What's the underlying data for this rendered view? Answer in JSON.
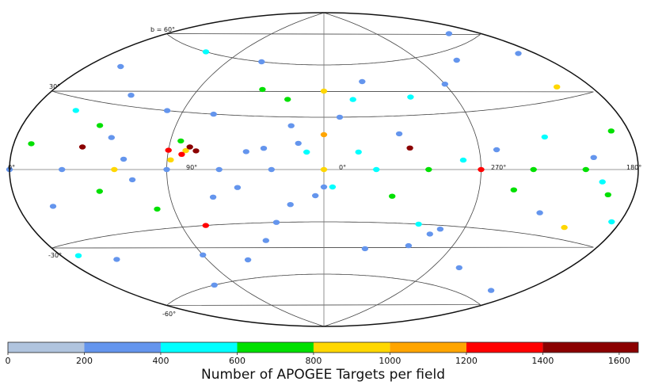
{
  "chart_data": {
    "type": "scatter",
    "projection": "aitoff",
    "title": "",
    "graticule_labels": {
      "b_plus_60": "b = 60°",
      "b_plus_30": "30°",
      "b_zero_left": "0°",
      "b_minus_30": "-30°",
      "b_minus_60": "-60°",
      "l_180": "180°",
      "l_90": "90°",
      "l_0": "0°",
      "l_270": "270°"
    },
    "colorbar": {
      "label": "Number of APOGEE Targets per field",
      "ticks": [
        "0",
        "200",
        "400",
        "600",
        "800",
        "1000",
        "1200",
        "1400",
        "1600"
      ],
      "bins": [
        {
          "min": 0,
          "max": 200,
          "color": "#b0c4de"
        },
        {
          "min": 200,
          "max": 400,
          "color": "#6495ed"
        },
        {
          "min": 400,
          "max": 600,
          "color": "#00ffff"
        },
        {
          "min": 600,
          "max": 800,
          "color": "#00e000"
        },
        {
          "min": 800,
          "max": 1000,
          "color": "#ffd700"
        },
        {
          "min": 1000,
          "max": 1200,
          "color": "#ffa500"
        },
        {
          "min": 1200,
          "max": 1400,
          "color": "#ff0000"
        },
        {
          "min": 1400,
          "max": 1650,
          "color": "#8b0000"
        }
      ]
    },
    "points": [
      {
        "l": 90,
        "b": 0,
        "n": 350
      },
      {
        "l": 60,
        "b": 0,
        "n": 350
      },
      {
        "l": 30,
        "b": 0,
        "n": 350
      },
      {
        "l": 0,
        "b": 0,
        "n": 900
      },
      {
        "l": 330,
        "b": 0,
        "n": 450
      },
      {
        "l": 300,
        "b": 0,
        "n": 700
      },
      {
        "l": 270,
        "b": 0,
        "n": 1300
      },
      {
        "l": 240,
        "b": 0,
        "n": 700
      },
      {
        "l": 210,
        "b": 0,
        "n": 700
      },
      {
        "l": 150,
        "b": 0,
        "n": 350
      },
      {
        "l": 120,
        "b": 0,
        "n": 850
      },
      {
        "l": 180,
        "b": 0,
        "n": 350
      },
      {
        "l": 90,
        "b": 10,
        "n": 1200
      },
      {
        "l": 80,
        "b": 10,
        "n": 900
      },
      {
        "l": 78,
        "b": 12,
        "n": 1400
      },
      {
        "l": 82,
        "b": 8,
        "n": 1300
      },
      {
        "l": 74,
        "b": 10,
        "n": 1500
      },
      {
        "l": 84,
        "b": 15,
        "n": 700
      },
      {
        "l": 88,
        "b": 5,
        "n": 850
      },
      {
        "l": 140,
        "b": 10,
        "n": 1500
      },
      {
        "l": 310,
        "b": 12,
        "n": 1500
      },
      {
        "l": 0,
        "b": 20,
        "n": 1100
      },
      {
        "l": 0,
        "b": 45,
        "n": 900
      },
      {
        "l": 200,
        "b": 35,
        "n": 900
      },
      {
        "l": 210,
        "b": -25,
        "n": 900
      },
      {
        "l": 75,
        "b": -30,
        "n": 1300
      },
      {
        "l": 10,
        "b": 10,
        "n": 400
      },
      {
        "l": 15,
        "b": 15,
        "n": 350
      },
      {
        "l": 20,
        "b": 25,
        "n": 350
      },
      {
        "l": 25,
        "b": 40,
        "n": 700
      },
      {
        "l": -10,
        "b": 30,
        "n": 350
      },
      {
        "l": -20,
        "b": 40,
        "n": 450
      },
      {
        "l": 340,
        "b": 10,
        "n": 450
      },
      {
        "l": 0,
        "b": -10,
        "n": 350
      },
      {
        "l": 5,
        "b": -15,
        "n": 350
      },
      {
        "l": 355,
        "b": -10,
        "n": 450
      },
      {
        "l": 290,
        "b": -35,
        "n": 350
      },
      {
        "l": 285,
        "b": -32,
        "n": 350
      },
      {
        "l": 300,
        "b": -30,
        "n": 450
      },
      {
        "l": 300,
        "b": -42,
        "n": 350
      },
      {
        "l": 45,
        "b": 45,
        "n": 700
      },
      {
        "l": 70,
        "b": 30,
        "n": 350
      },
      {
        "l": 100,
        "b": 30,
        "n": 350
      },
      {
        "l": 130,
        "b": 35,
        "n": 350
      },
      {
        "l": 160,
        "b": 45,
        "n": 350
      },
      {
        "l": 190,
        "b": 50,
        "n": 350
      },
      {
        "l": 240,
        "b": 55,
        "n": 350
      },
      {
        "l": 270,
        "b": 45,
        "n": 350
      },
      {
        "l": 300,
        "b": 40,
        "n": 450
      },
      {
        "l": 330,
        "b": 50,
        "n": 350
      },
      {
        "l": 60,
        "b": 60,
        "n": 350
      },
      {
        "l": 120,
        "b": 60,
        "n": 450
      },
      {
        "l": 200,
        "b": 65,
        "n": 350
      },
      {
        "l": 40,
        "b": -40,
        "n": 350
      },
      {
        "l": 60,
        "b": -50,
        "n": 350
      },
      {
        "l": 90,
        "b": -45,
        "n": 350
      },
      {
        "l": 110,
        "b": -60,
        "n": 350
      },
      {
        "l": 150,
        "b": -40,
        "n": 350
      },
      {
        "l": 170,
        "b": -35,
        "n": 450
      },
      {
        "l": 200,
        "b": -55,
        "n": 350
      },
      {
        "l": 250,
        "b": -50,
        "n": 350
      },
      {
        "l": 330,
        "b": -45,
        "n": 350
      },
      {
        "l": 20,
        "b": -20,
        "n": 350
      },
      {
        "l": 30,
        "b": -30,
        "n": 350
      },
      {
        "l": 100,
        "b": -20,
        "n": 700
      },
      {
        "l": 130,
        "b": -10,
        "n": 700
      },
      {
        "l": 160,
        "b": -15,
        "n": 350
      },
      {
        "l": 135,
        "b": 20,
        "n": 700
      },
      {
        "l": 125,
        "b": 15,
        "n": 350
      },
      {
        "l": 155,
        "b": 25,
        "n": 450
      },
      {
        "l": 170,
        "b": 10,
        "n": 700
      },
      {
        "l": 190,
        "b": 15,
        "n": 700
      },
      {
        "l": 195,
        "b": -10,
        "n": 700
      },
      {
        "l": 200,
        "b": -5,
        "n": 450
      },
      {
        "l": 185,
        "b": -20,
        "n": 450
      },
      {
        "l": 205,
        "b": 5,
        "n": 350
      },
      {
        "l": 230,
        "b": 15,
        "n": 450
      },
      {
        "l": 250,
        "b": -10,
        "n": 700
      },
      {
        "l": 260,
        "b": 10,
        "n": 350
      },
      {
        "l": 280,
        "b": 5,
        "n": 450
      },
      {
        "l": 230,
        "b": -20,
        "n": 350
      },
      {
        "l": 315,
        "b": 20,
        "n": 350
      },
      {
        "l": 320,
        "b": -15,
        "n": 700
      },
      {
        "l": 45,
        "b": 10,
        "n": 350
      },
      {
        "l": 50,
        "b": -10,
        "n": 350
      },
      {
        "l": 35,
        "b": 12,
        "n": 350
      },
      {
        "l": 65,
        "b": -15,
        "n": 350
      },
      {
        "l": 115,
        "b": 5,
        "n": 350
      },
      {
        "l": 110,
        "b": -5,
        "n": 350
      }
    ]
  }
}
